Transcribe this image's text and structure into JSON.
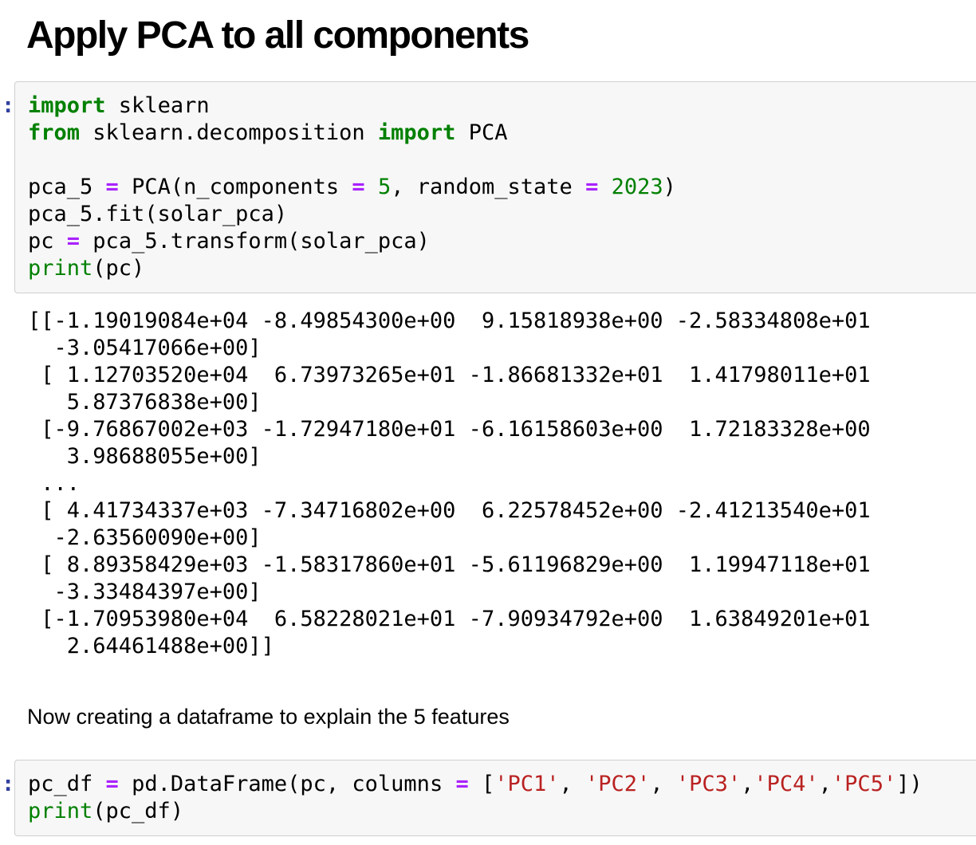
{
  "page": {
    "title": "Apply PCA to all components"
  },
  "theme": {
    "keyword_green": "#008000",
    "number_green": "#008000",
    "operator_purple": "#AA22FF",
    "builtin_green": "#008000",
    "string_red": "#BA2121",
    "prompt_blue": "#303F9F",
    "cell_background": "#F7F7F7",
    "cell_border": "#CFCFCF",
    "text_color": "#000000"
  },
  "markdown_note": "Now creating a dataframe to explain the 5 features",
  "cells": [
    {
      "type": "code",
      "prompt": ":",
      "lines": [
        [
          {
            "t": "import",
            "c": "kw"
          },
          {
            "t": " sklearn",
            "c": "pl"
          }
        ],
        [
          {
            "t": "from",
            "c": "kw"
          },
          {
            "t": " sklearn.decomposition ",
            "c": "pl"
          },
          {
            "t": "import",
            "c": "kw"
          },
          {
            "t": " PCA",
            "c": "pl"
          }
        ],
        [
          {
            "t": " ",
            "c": "pl"
          }
        ],
        [
          {
            "t": "pca_5 ",
            "c": "pl"
          },
          {
            "t": "=",
            "c": "op"
          },
          {
            "t": " PCA(n_components ",
            "c": "pl"
          },
          {
            "t": "=",
            "c": "op"
          },
          {
            "t": " ",
            "c": "pl"
          },
          {
            "t": "5",
            "c": "nm"
          },
          {
            "t": ", random_state ",
            "c": "pl"
          },
          {
            "t": "=",
            "c": "op"
          },
          {
            "t": " ",
            "c": "pl"
          },
          {
            "t": "2023",
            "c": "nm"
          },
          {
            "t": ")",
            "c": "pl"
          }
        ],
        [
          {
            "t": "pca_5.fit(solar_pca)",
            "c": "pl"
          }
        ],
        [
          {
            "t": "pc ",
            "c": "pl"
          },
          {
            "t": "=",
            "c": "op"
          },
          {
            "t": " pca_5.transform(solar_pca)",
            "c": "pl"
          }
        ],
        [
          {
            "t": "print",
            "c": "bi"
          },
          {
            "t": "(pc)",
            "c": "pl"
          }
        ]
      ]
    },
    {
      "type": "code",
      "prompt": ":",
      "lines": [
        [
          {
            "t": "pc_df ",
            "c": "pl"
          },
          {
            "t": "=",
            "c": "op"
          },
          {
            "t": " pd.DataFrame(pc, columns ",
            "c": "pl"
          },
          {
            "t": "=",
            "c": "op"
          },
          {
            "t": " [",
            "c": "pl"
          },
          {
            "t": "'PC1'",
            "c": "st"
          },
          {
            "t": ", ",
            "c": "pl"
          },
          {
            "t": "'PC2'",
            "c": "st"
          },
          {
            "t": ", ",
            "c": "pl"
          },
          {
            "t": "'PC3'",
            "c": "st"
          },
          {
            "t": ",",
            "c": "pl"
          },
          {
            "t": "'PC4'",
            "c": "st"
          },
          {
            "t": ",",
            "c": "pl"
          },
          {
            "t": "'PC5'",
            "c": "st"
          },
          {
            "t": "])",
            "c": "pl"
          }
        ],
        [
          {
            "t": "print",
            "c": "bi"
          },
          {
            "t": "(pc_df)",
            "c": "pl"
          }
        ]
      ]
    }
  ],
  "output_lines": [
    "[[-1.19019084e+04 -8.49854300e+00  9.15818938e+00 -2.58334808e+01",
    "  -3.05417066e+00]",
    " [ 1.12703520e+04  6.73973265e+01 -1.86681332e+01  1.41798011e+01",
    "   5.87376838e+00]",
    " [-9.76867002e+03 -1.72947180e+01 -6.16158603e+00  1.72183328e+00",
    "   3.98688055e+00]",
    " ...",
    " [ 4.41734337e+03 -7.34716802e+00  6.22578452e+00 -2.41213540e+01",
    "  -2.63560090e+00]",
    " [ 8.89358429e+03 -1.58317860e+01 -5.61196829e+00  1.19947118e+01",
    "  -3.33484397e+00]",
    " [-1.70953980e+04  6.58228021e+01 -7.90934792e+00  1.63849201e+01",
    "   2.64461488e+00]]"
  ]
}
